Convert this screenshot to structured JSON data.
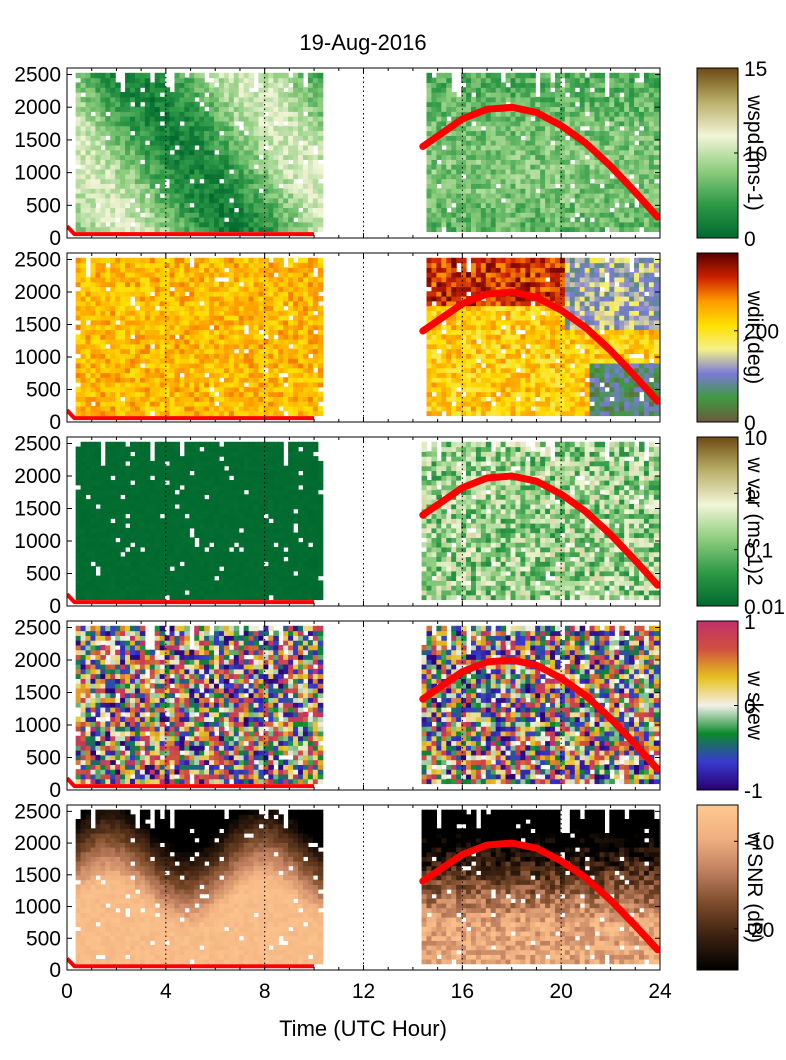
{
  "figure": {
    "title": "19-Aug-2016",
    "xlabel": "Time (UTC Hour)",
    "x_ticks": [
      0,
      4,
      8,
      12,
      16,
      20,
      24
    ],
    "y_ticks": [
      0,
      500,
      1000,
      1500,
      2000,
      2500
    ]
  },
  "chart_data": [
    {
      "type": "heatmap",
      "ylabel": "",
      "xlim": [
        0,
        24
      ],
      "ylim": [
        0,
        2600
      ],
      "colorbar": {
        "label": "wspd (ms-1)",
        "min": 0,
        "max": 15,
        "ticks": [
          "15",
          "10",
          "0"
        ],
        "colormap": [
          "#006a2f",
          "#2f9a47",
          "#8fce7f",
          "#f2f5d8",
          "#b9b06a",
          "#6e4a13"
        ]
      },
      "data_gaps": [
        [
          10.3,
          14.4
        ]
      ],
      "mixed_layer_height": {
        "x": [
          0,
          0.3,
          10,
          14.4,
          16,
          17,
          18,
          19,
          20,
          21,
          22,
          23,
          23.9
        ],
        "y": [
          180,
          60,
          60,
          1400,
          1820,
          1970,
          2000,
          1920,
          1720,
          1450,
          1100,
          700,
          320
        ]
      }
    },
    {
      "type": "heatmap",
      "ylabel": "",
      "xlim": [
        0,
        24
      ],
      "ylim": [
        0,
        2600
      ],
      "colorbar": {
        "label": "wdir (deg)",
        "min": 0,
        "max": 360,
        "ticks": [
          "200",
          "0"
        ],
        "colormap": [
          "#6b5a3c",
          "#3f9a3f",
          "#7a7ad8",
          "#f3f08a",
          "#ffe000",
          "#ff9a00",
          "#cc2000",
          "#550000"
        ]
      },
      "data_gaps": [
        [
          10.3,
          14.4
        ]
      ],
      "mixed_layer_height": {
        "x": [
          0,
          0.3,
          10,
          14.4,
          16,
          17,
          18,
          19,
          20,
          21,
          22,
          23,
          23.9
        ],
        "y": [
          180,
          60,
          60,
          1400,
          1820,
          1970,
          2000,
          1920,
          1720,
          1450,
          1100,
          700,
          320
        ]
      }
    },
    {
      "type": "heatmap",
      "ylabel": "",
      "xlim": [
        0,
        24
      ],
      "ylim": [
        0,
        2600
      ],
      "colorbar": {
        "label": "w var (ms-1)2",
        "min": 0.01,
        "max": 10,
        "scale": "log",
        "ticks": [
          "10",
          "1",
          "0.1",
          "0.01"
        ],
        "colormap": [
          "#006a2f",
          "#2f9a47",
          "#8fce7f",
          "#f2f5d8",
          "#b9b06a",
          "#6e4a13"
        ]
      },
      "data_gaps": [
        [
          10.3,
          14.2
        ]
      ],
      "mixed_layer_height": {
        "x": [
          0,
          0.3,
          10,
          14.4,
          16,
          17,
          18,
          19,
          20,
          21,
          22,
          23,
          23.9
        ],
        "y": [
          180,
          60,
          60,
          1400,
          1820,
          1970,
          2000,
          1920,
          1720,
          1450,
          1100,
          700,
          320
        ]
      }
    },
    {
      "type": "heatmap",
      "ylabel": "",
      "xlim": [
        0,
        24
      ],
      "ylim": [
        0,
        2600
      ],
      "colorbar": {
        "label": "w skew",
        "min": -1,
        "max": 1,
        "ticks": [
          "1",
          "0",
          "-1"
        ],
        "colormap": [
          "#2a0070",
          "#3a3ad0",
          "#0a8a2a",
          "#f2f0e8",
          "#e6c020",
          "#d05040",
          "#c0306a"
        ]
      },
      "data_gaps": [
        [
          10.3,
          14.2
        ]
      ],
      "mixed_layer_height": {
        "x": [
          0,
          0.3,
          10,
          14.4,
          16,
          17,
          18,
          19,
          20,
          21,
          22,
          23,
          23.9
        ],
        "y": [
          180,
          60,
          60,
          1400,
          1820,
          1970,
          2000,
          1920,
          1720,
          1450,
          1100,
          700,
          320
        ]
      }
    },
    {
      "type": "heatmap",
      "ylabel": "",
      "xlim": [
        0,
        24
      ],
      "ylim": [
        0,
        2600
      ],
      "colorbar": {
        "label": "w SNR (dB)",
        "min": -30,
        "max": -5,
        "ticks": [
          "-10",
          "-20"
        ],
        "colormap": [
          "#000000",
          "#3a2010",
          "#7a4a2a",
          "#c08060",
          "#f0b080",
          "#ffc890"
        ]
      },
      "data_gaps": [
        [
          10.3,
          14.2
        ]
      ],
      "mixed_layer_height": {
        "x": [
          0,
          0.3,
          10,
          14.4,
          16,
          17,
          18,
          19,
          20,
          21,
          22,
          23,
          23.9
        ],
        "y": [
          180,
          60,
          60,
          1400,
          1820,
          1970,
          2000,
          1920,
          1720,
          1450,
          1100,
          700,
          320
        ]
      }
    }
  ],
  "colors": {
    "mixed_layer_line": "#ff0000",
    "axis": "#000000"
  }
}
